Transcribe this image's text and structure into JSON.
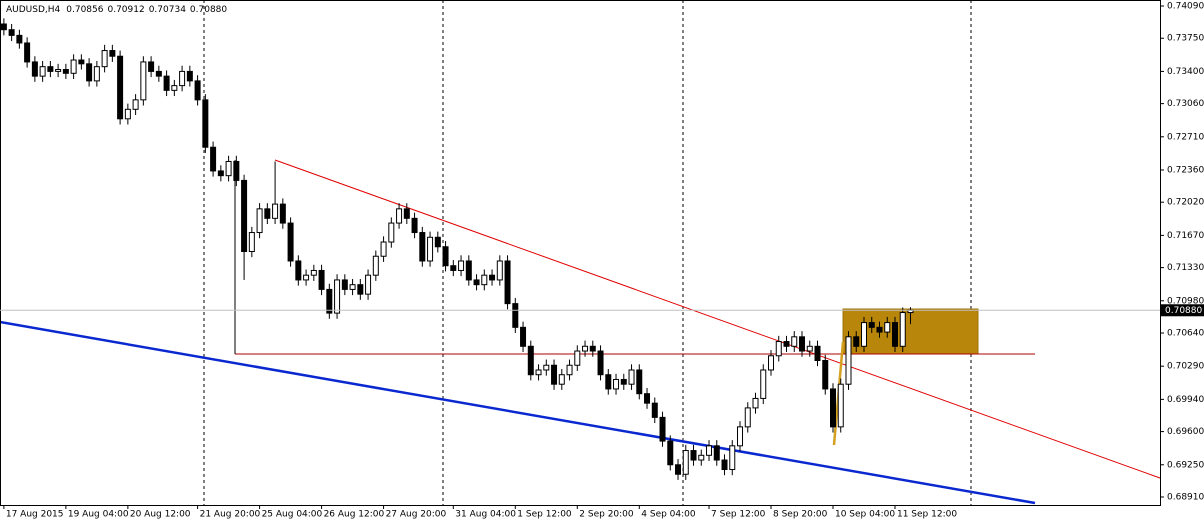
{
  "chart_data": {
    "type": "candlestick",
    "title": "AUDUSD,H4",
    "last_labels": [
      "0.70856",
      "0.70912",
      "0.70734",
      "0.70880"
    ],
    "current_price": {
      "value": 0.7088,
      "label": "0.70880"
    },
    "up_color": "#ffffff",
    "down_color": "#000000",
    "xlim": [
      -0.5,
      149.2
    ],
    "xticks": [
      {
        "value": 0,
        "label": "17 Aug 2015"
      },
      {
        "value": 8,
        "label": "19 Aug 04:00"
      },
      {
        "value": 16,
        "label": "20 Aug 12:00"
      },
      {
        "value": 25,
        "label": "21 Aug 20:00"
      },
      {
        "value": 33,
        "label": "25 Aug 04:00"
      },
      {
        "value": 41,
        "label": "26 Aug 12:00"
      },
      {
        "value": 49,
        "label": "27 Aug 20:00"
      },
      {
        "value": 58,
        "label": "31 Aug 04:00"
      },
      {
        "value": 66,
        "label": "1 Sep 12:00"
      },
      {
        "value": 74,
        "label": "2 Sep 20:00"
      },
      {
        "value": 82,
        "label": "4 Sep 04:00"
      },
      {
        "value": 91,
        "label": "7 Sep 12:00"
      },
      {
        "value": 99,
        "label": "8 Sep 20:00"
      },
      {
        "value": 107,
        "label": "10 Sep 04:00"
      },
      {
        "value": 115,
        "label": "11 Sep 12:00"
      }
    ],
    "ylim": [
      0.6891,
      0.7409
    ],
    "yticks": [
      {
        "value": 0.7409,
        "label": "0.74090"
      },
      {
        "value": 0.7375,
        "label": "0.73750"
      },
      {
        "value": 0.734,
        "label": "0.73400"
      },
      {
        "value": 0.7306,
        "label": "0.73060"
      },
      {
        "value": 0.7271,
        "label": "0.72710"
      },
      {
        "value": 0.7236,
        "label": "0.72360"
      },
      {
        "value": 0.7202,
        "label": "0.72020"
      },
      {
        "value": 0.7167,
        "label": "0.71670"
      },
      {
        "value": 0.7133,
        "label": "0.71330"
      },
      {
        "value": 0.7098,
        "label": "0.70980"
      },
      {
        "value": 0.7064,
        "label": "0.70640"
      },
      {
        "value": 0.7029,
        "label": "0.70290"
      },
      {
        "value": 0.6994,
        "label": "0.69940"
      },
      {
        "value": 0.696,
        "label": "0.69600"
      },
      {
        "value": 0.6925,
        "label": "0.69250"
      },
      {
        "value": 0.6891,
        "label": "0.68910"
      }
    ],
    "open": [
      0.739,
      0.7384,
      0.7378,
      0.737,
      0.735,
      0.7335,
      0.7345,
      0.734,
      0.7342,
      0.7338,
      0.7352,
      0.7348,
      0.733,
      0.7345,
      0.7362,
      0.7356,
      0.729,
      0.73,
      0.731,
      0.735,
      0.734,
      0.7335,
      0.732,
      0.7325,
      0.734,
      0.733,
      0.731,
      0.726,
      0.7235,
      0.723,
      0.7245,
      0.7225,
      0.715,
      0.717,
      0.7195,
      0.7185,
      0.72,
      0.718,
      0.714,
      0.712,
      0.7125,
      0.713,
      0.711,
      0.7085,
      0.712,
      0.711,
      0.7115,
      0.7105,
      0.7125,
      0.7145,
      0.716,
      0.718,
      0.7195,
      0.7185,
      0.717,
      0.714,
      0.7165,
      0.7155,
      0.7135,
      0.713,
      0.714,
      0.712,
      0.7115,
      0.7125,
      0.712,
      0.714,
      0.7095,
      0.707,
      0.705,
      0.702,
      0.7025,
      0.703,
      0.701,
      0.702,
      0.703,
      0.7045,
      0.705,
      0.7045,
      0.702,
      0.7005,
      0.7015,
      0.701,
      0.7025,
      0.7,
      0.699,
      0.6975,
      0.695,
      0.6925,
      0.6915,
      0.694,
      0.693,
      0.6935,
      0.6945,
      0.693,
      0.692,
      0.6945,
      0.6965,
      0.6985,
      0.6995,
      0.7025,
      0.704,
      0.7055,
      0.705,
      0.706,
      0.7045,
      0.705,
      0.7035,
      0.7005,
      0.6965,
      0.701,
      0.706,
      0.705,
      0.7075,
      0.707,
      0.7065,
      0.7075,
      0.705,
      0.70856
    ],
    "high": [
      0.7396,
      0.739,
      0.7384,
      0.7376,
      0.7356,
      0.7351,
      0.7351,
      0.7348,
      0.7348,
      0.7358,
      0.7358,
      0.7354,
      0.7351,
      0.7368,
      0.7368,
      0.7362,
      0.7306,
      0.7316,
      0.7356,
      0.7356,
      0.7346,
      0.7341,
      0.7331,
      0.7346,
      0.7346,
      0.7336,
      0.7316,
      0.7266,
      0.7241,
      0.7251,
      0.7251,
      0.7231,
      0.7176,
      0.7201,
      0.7201,
      0.7245,
      0.7206,
      0.7186,
      0.7146,
      0.7131,
      0.7136,
      0.7136,
      0.7116,
      0.7126,
      0.7126,
      0.7121,
      0.7121,
      0.7131,
      0.7151,
      0.7166,
      0.7186,
      0.7201,
      0.7201,
      0.7191,
      0.7176,
      0.7171,
      0.7171,
      0.7161,
      0.7141,
      0.7146,
      0.7146,
      0.7126,
      0.7131,
      0.7131,
      0.7146,
      0.7146,
      0.7101,
      0.7076,
      0.7056,
      0.7031,
      0.7036,
      0.7036,
      0.7026,
      0.7036,
      0.7051,
      0.7056,
      0.7056,
      0.7051,
      0.7026,
      0.7021,
      0.7021,
      0.7031,
      0.7031,
      0.7006,
      0.6996,
      0.6981,
      0.6956,
      0.6931,
      0.6946,
      0.6946,
      0.6941,
      0.6951,
      0.6951,
      0.6936,
      0.6951,
      0.6971,
      0.6991,
      0.7001,
      0.7031,
      0.7046,
      0.7061,
      0.7061,
      0.7066,
      0.7066,
      0.7056,
      0.7056,
      0.7041,
      0.7011,
      0.7016,
      0.7066,
      0.7066,
      0.7081,
      0.7081,
      0.7076,
      0.7081,
      0.7081,
      0.7091,
      0.70912
    ],
    "low": [
      0.7378,
      0.7372,
      0.7364,
      0.7344,
      0.7329,
      0.7329,
      0.7334,
      0.7334,
      0.7332,
      0.7332,
      0.7342,
      0.7324,
      0.7324,
      0.7339,
      0.735,
      0.7284,
      0.7284,
      0.7294,
      0.7304,
      0.7334,
      0.7329,
      0.7314,
      0.7314,
      0.7319,
      0.7324,
      0.7304,
      0.7254,
      0.7229,
      0.7224,
      0.7224,
      0.7219,
      0.712,
      0.7144,
      0.7164,
      0.7179,
      0.7179,
      0.7174,
      0.7134,
      0.7114,
      0.7114,
      0.7119,
      0.7104,
      0.7079,
      0.7079,
      0.7104,
      0.7104,
      0.7099,
      0.7099,
      0.7119,
      0.7139,
      0.7154,
      0.7174,
      0.7179,
      0.7164,
      0.7134,
      0.7134,
      0.7149,
      0.7129,
      0.7124,
      0.7124,
      0.7114,
      0.7109,
      0.7109,
      0.7114,
      0.7114,
      0.7089,
      0.7064,
      0.7044,
      0.7014,
      0.7014,
      0.7019,
      0.7004,
      0.7004,
      0.7014,
      0.7024,
      0.7039,
      0.7039,
      0.7014,
      0.6999,
      0.6999,
      0.7004,
      0.7004,
      0.6994,
      0.6984,
      0.6969,
      0.6944,
      0.6919,
      0.6909,
      0.6909,
      0.6924,
      0.6924,
      0.6929,
      0.6924,
      0.6914,
      0.6914,
      0.6939,
      0.6959,
      0.6979,
      0.6989,
      0.7019,
      0.7034,
      0.7044,
      0.7044,
      0.7039,
      0.7039,
      0.7029,
      0.6999,
      0.6959,
      0.6959,
      0.7004,
      0.7044,
      0.7044,
      0.7064,
      0.7059,
      0.7059,
      0.7044,
      0.7044,
      0.70734
    ],
    "close": [
      0.7384,
      0.7378,
      0.737,
      0.735,
      0.7335,
      0.7345,
      0.734,
      0.7342,
      0.7338,
      0.7352,
      0.7348,
      0.733,
      0.7345,
      0.7362,
      0.7356,
      0.729,
      0.73,
      0.731,
      0.735,
      0.734,
      0.7335,
      0.732,
      0.7325,
      0.734,
      0.733,
      0.731,
      0.726,
      0.7235,
      0.723,
      0.7245,
      0.7225,
      0.715,
      0.717,
      0.7195,
      0.7185,
      0.72,
      0.718,
      0.714,
      0.712,
      0.7125,
      0.713,
      0.711,
      0.7085,
      0.712,
      0.711,
      0.7115,
      0.7105,
      0.7125,
      0.7145,
      0.716,
      0.718,
      0.7195,
      0.7185,
      0.717,
      0.714,
      0.7165,
      0.7155,
      0.7135,
      0.713,
      0.714,
      0.712,
      0.7115,
      0.7125,
      0.712,
      0.714,
      0.7095,
      0.707,
      0.705,
      0.702,
      0.7025,
      0.703,
      0.701,
      0.702,
      0.703,
      0.7045,
      0.705,
      0.7045,
      0.702,
      0.7005,
      0.7015,
      0.701,
      0.7025,
      0.7,
      0.699,
      0.6975,
      0.695,
      0.6925,
      0.6915,
      0.694,
      0.693,
      0.6935,
      0.6945,
      0.693,
      0.692,
      0.6945,
      0.6965,
      0.6985,
      0.6995,
      0.7025,
      0.704,
      0.7055,
      0.705,
      0.706,
      0.7045,
      0.705,
      0.7035,
      0.7005,
      0.6965,
      0.701,
      0.706,
      0.705,
      0.7075,
      0.707,
      0.7065,
      0.7075,
      0.705,
      0.70856,
      0.7088
    ]
  }
}
